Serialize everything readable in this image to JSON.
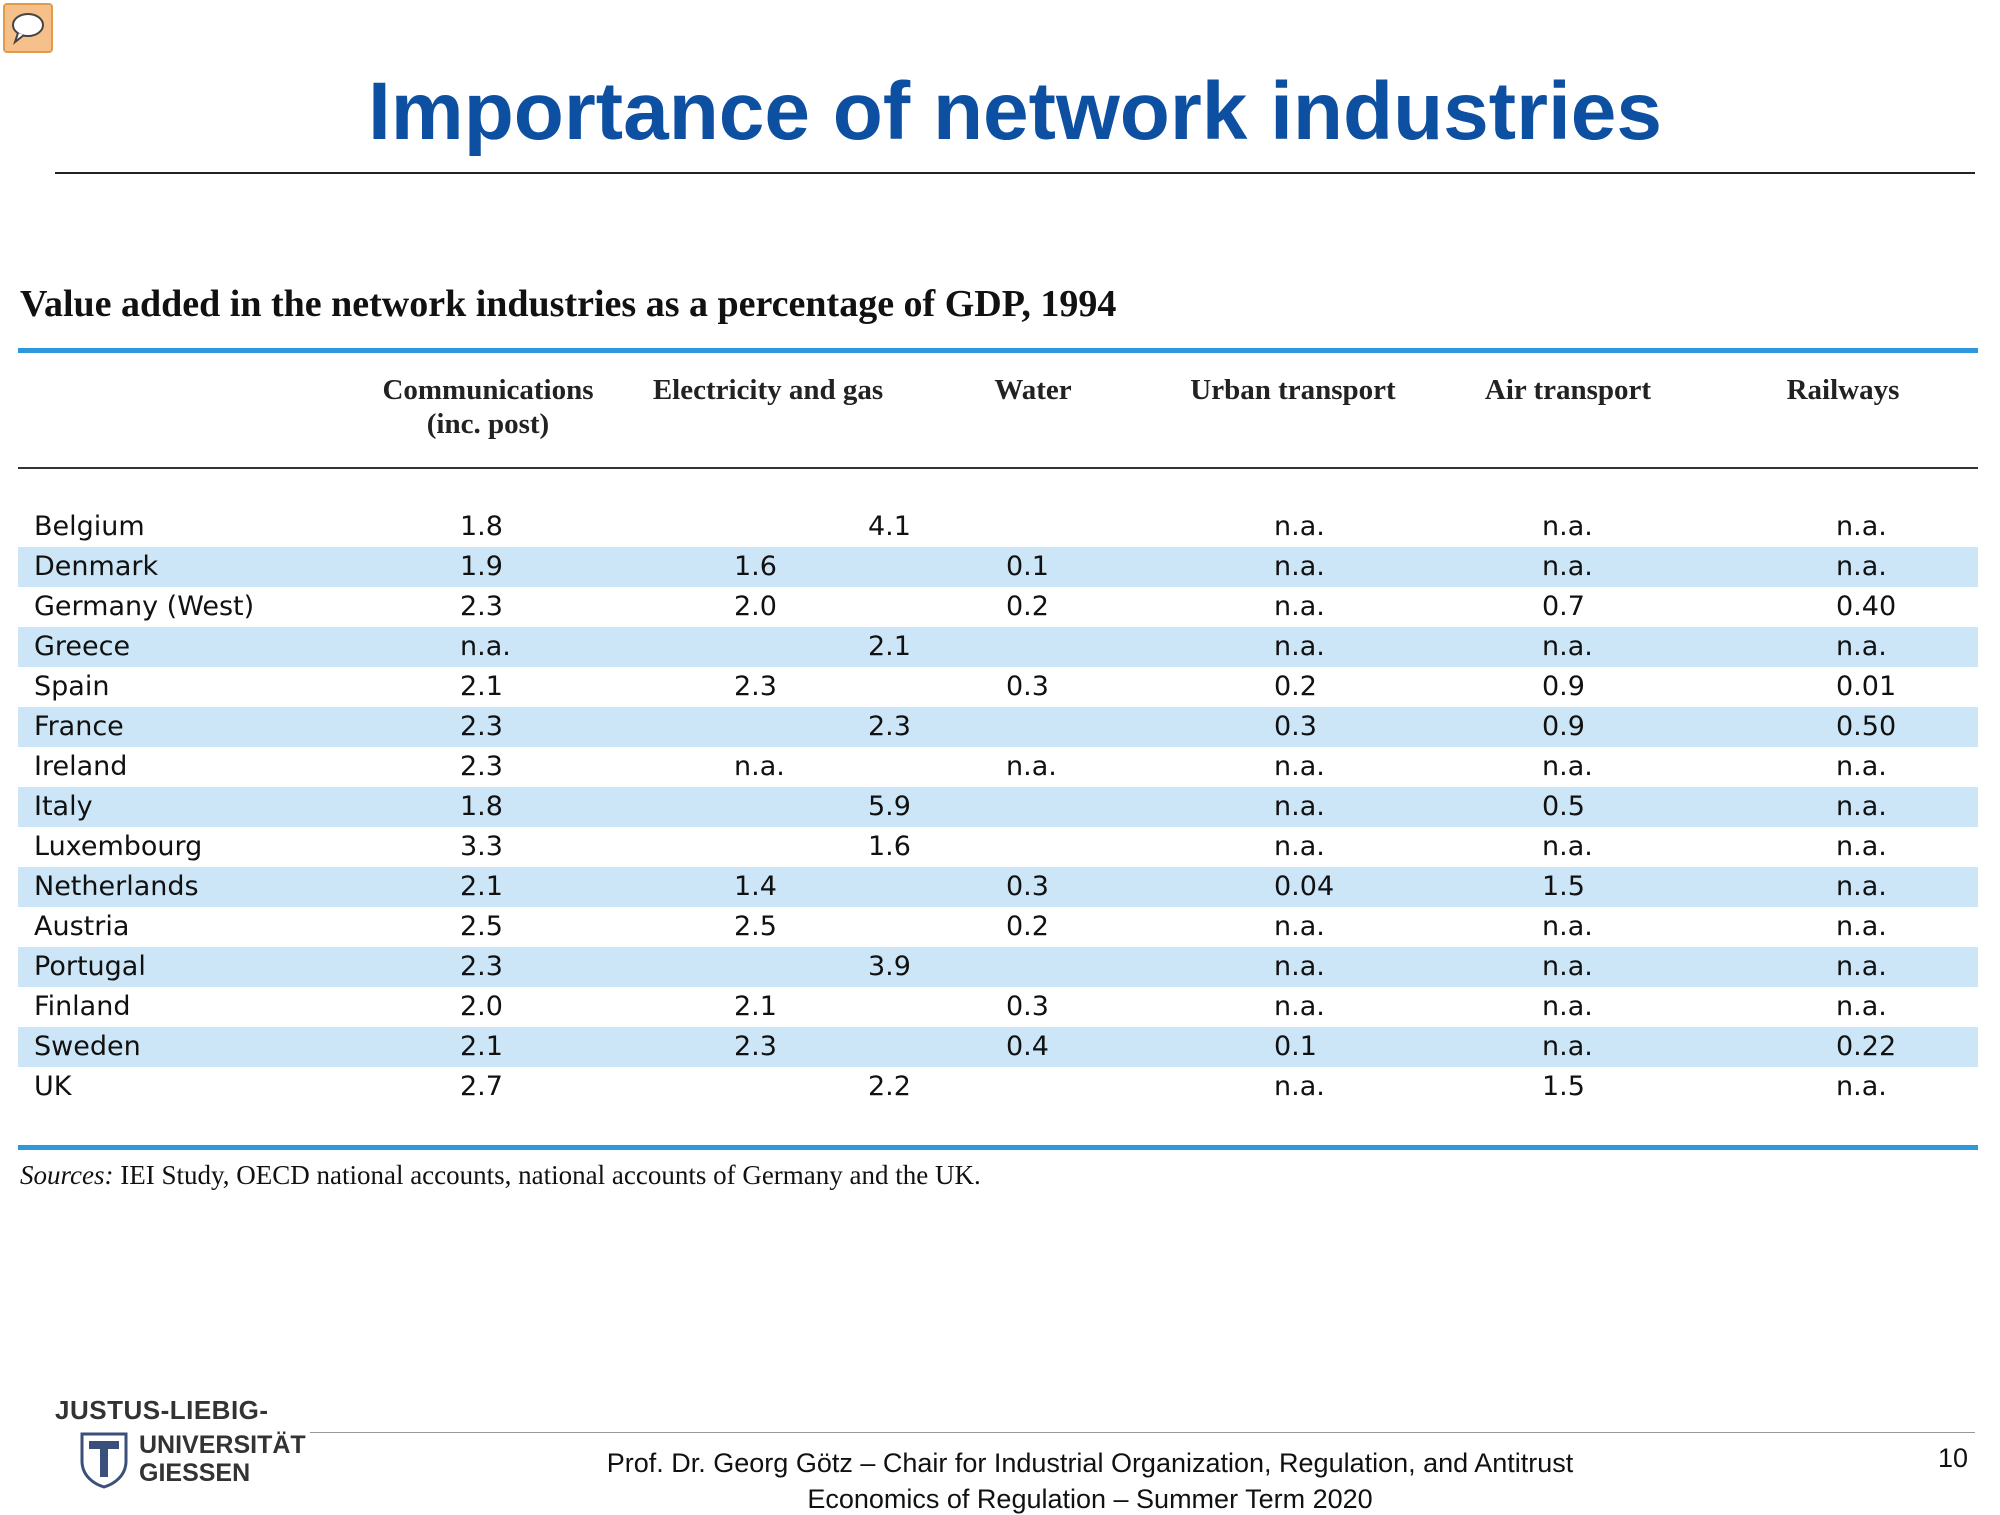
{
  "slide": {
    "title": "Importance of network industries",
    "page_number": "10"
  },
  "table": {
    "caption": "Value added in the network industries as a percentage of GDP, 1994",
    "columns": [
      "",
      "Communications (inc. post)",
      "Electricity and gas",
      "Water",
      "Urban transport",
      "Air transport",
      "Railways"
    ],
    "header_lines": {
      "comm_1": "Communications",
      "comm_2": "(inc. post)",
      "elec": "Electricity and gas",
      "water": "Water",
      "urban": "Urban transport",
      "air": "Air transport",
      "rail": "Railways"
    },
    "rows": [
      {
        "country": "Belgium",
        "comm": "1.8",
        "elec": "",
        "merged": "4.1",
        "water": "",
        "urban": "n.a.",
        "air": "n.a.",
        "rail": "n.a."
      },
      {
        "country": "Denmark",
        "comm": "1.9",
        "elec": "1.6",
        "merged": "",
        "water": "0.1",
        "urban": "n.a.",
        "air": "n.a.",
        "rail": "n.a."
      },
      {
        "country": "Germany (West)",
        "comm": "2.3",
        "elec": "2.0",
        "merged": "",
        "water": "0.2",
        "urban": "n.a.",
        "air": "0.7",
        "rail": "0.40"
      },
      {
        "country": "Greece",
        "comm": "n.a.",
        "elec": "",
        "merged": "2.1",
        "water": "",
        "urban": "n.a.",
        "air": "n.a.",
        "rail": "n.a."
      },
      {
        "country": "Spain",
        "comm": "2.1",
        "elec": "2.3",
        "merged": "",
        "water": "0.3",
        "urban": "0.2",
        "air": "0.9",
        "rail": "0.01"
      },
      {
        "country": "France",
        "comm": "2.3",
        "elec": "",
        "merged": "2.3",
        "water": "",
        "urban": "0.3",
        "air": "0.9",
        "rail": "0.50"
      },
      {
        "country": "Ireland",
        "comm": "2.3",
        "elec": "n.a.",
        "merged": "",
        "water": "n.a.",
        "urban": "n.a.",
        "air": "n.a.",
        "rail": "n.a."
      },
      {
        "country": "Italy",
        "comm": "1.8",
        "elec": "",
        "merged": "5.9",
        "water": "",
        "urban": "n.a.",
        "air": "0.5",
        "rail": "n.a."
      },
      {
        "country": "Luxembourg",
        "comm": "3.3",
        "elec": "",
        "merged": "1.6",
        "water": "",
        "urban": "n.a.",
        "air": "n.a.",
        "rail": "n.a."
      },
      {
        "country": "Netherlands",
        "comm": "2.1",
        "elec": "1.4",
        "merged": "",
        "water": "0.3",
        "urban": "0.04",
        "air": "1.5",
        "rail": "n.a."
      },
      {
        "country": "Austria",
        "comm": "2.5",
        "elec": "2.5",
        "merged": "",
        "water": "0.2",
        "urban": "n.a.",
        "air": "n.a.",
        "rail": "n.a."
      },
      {
        "country": "Portugal",
        "comm": "2.3",
        "elec": "",
        "merged": "3.9",
        "water": "",
        "urban": "n.a.",
        "air": "n.a.",
        "rail": "n.a."
      },
      {
        "country": "Finland",
        "comm": "2.0",
        "elec": "2.1",
        "merged": "",
        "water": "0.3",
        "urban": "n.a.",
        "air": "n.a.",
        "rail": "n.a."
      },
      {
        "country": "Sweden",
        "comm": "2.1",
        "elec": "2.3",
        "merged": "",
        "water": "0.4",
        "urban": "0.1",
        "air": "n.a.",
        "rail": "0.22"
      },
      {
        "country": "UK",
        "comm": "2.7",
        "elec": "",
        "merged": "2.2",
        "water": "",
        "urban": "n.a.",
        "air": "1.5",
        "rail": "n.a."
      }
    ],
    "sources_label": "Sources:",
    "sources_text": " IEI Study, OECD national accounts, national accounts of Germany and the UK."
  },
  "footer": {
    "logo_line1": "JUSTUS-LIEBIG-",
    "logo_line2": "UNIVERSITÄT",
    "logo_line3": "GIESSEN",
    "line1": "Prof. Dr. Georg Götz – Chair for Industrial Organization, Regulation, and Antitrust",
    "line2": "Economics of Regulation – Summer Term  2020"
  },
  "colors": {
    "title": "#0d4fa1",
    "rule_blue": "#2f97dc",
    "row_shade": "#cce6f7"
  },
  "icons": {
    "comment": "speech-bubble-icon",
    "logo": "university-shield-icon"
  }
}
